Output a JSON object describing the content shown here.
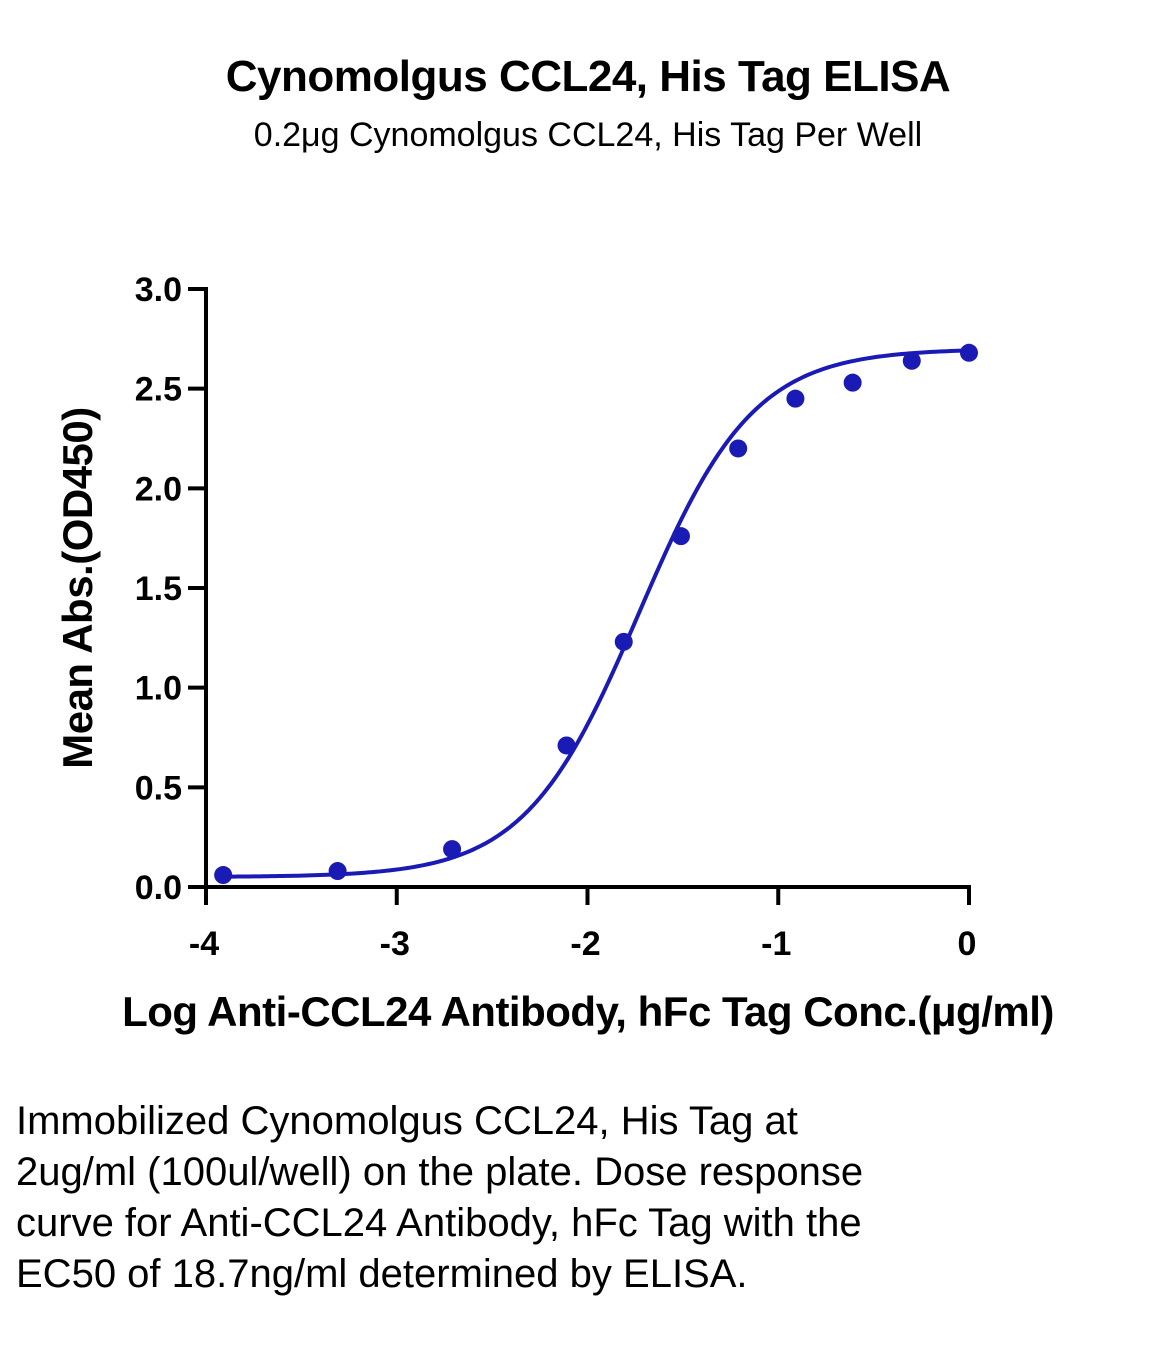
{
  "chart_data": {
    "type": "scatter",
    "title": "Cynomolgus CCL24, His Tag ELISA",
    "subtitle": "0.2μg Cynomolgus CCL24, His Tag Per Well",
    "xlabel": "Log Anti-CCL24 Antibody, hFc Tag Conc.(μg/ml)",
    "ylabel": "Mean Abs.(OD450)",
    "xlim": [
      -4,
      0
    ],
    "ylim": [
      0,
      3.0
    ],
    "xticks": [
      -4,
      -3,
      -2,
      -1,
      0
    ],
    "xtick_labels": [
      "-4",
      "-3",
      "-2",
      "-1",
      "0"
    ],
    "yticks": [
      0,
      0.5,
      1.0,
      1.5,
      2.0,
      2.5,
      3.0
    ],
    "ytick_labels": [
      "0.0",
      "0.5",
      "1.0",
      "1.5",
      "2.0",
      "2.5",
      "3.0"
    ],
    "grid": false,
    "series": [
      {
        "color": "#1a1ab4",
        "x": [
          -3.91,
          -3.31,
          -2.71,
          -2.11,
          -1.81,
          -1.51,
          -1.21,
          -0.91,
          -0.61,
          -0.3,
          0.0
        ],
        "y": [
          0.06,
          0.08,
          0.19,
          0.71,
          1.23,
          1.76,
          2.2,
          2.45,
          2.53,
          2.64,
          2.68
        ]
      }
    ],
    "fit_curve": {
      "model": "4PL",
      "bottom": 0.05,
      "top": 2.7,
      "log_ec50": -1.73,
      "hill": 1.45,
      "color": "#1a1ab4"
    }
  },
  "caption": "Immobilized Cynomolgus CCL24, His Tag at 2ug/ml (100ul/well) on the plate. Dose response curve for Anti-CCL24 Antibody, hFc Tag with the EC50 of 18.7ng/ml determined by ELISA."
}
